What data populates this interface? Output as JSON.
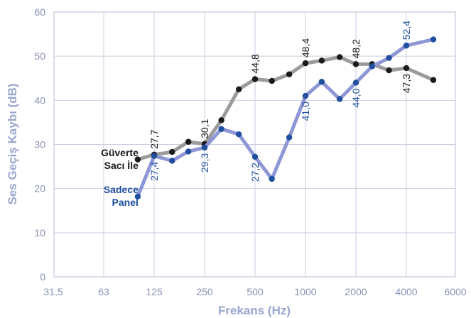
{
  "chart_data": {
    "type": "line",
    "xlabel": "Frekans (Hz)",
    "ylabel": "Ses Geçiş Kaybı (dB)",
    "x_scale": "log2",
    "x_ticks": [
      31.5,
      63,
      125,
      250,
      500,
      1000,
      2000,
      4000,
      6000
    ],
    "x_tick_labels": [
      "31,5",
      "63",
      "125",
      "250",
      "500",
      "1000",
      "2000",
      "4000",
      "6000"
    ],
    "ylim": [
      0,
      60
    ],
    "y_ticks": [
      0,
      10,
      20,
      30,
      40,
      50,
      60
    ],
    "y_tick_labels": [
      "0",
      "10",
      "20",
      "30",
      "40",
      "50",
      "60"
    ],
    "grid": true,
    "series": [
      {
        "name": "Güverte Sacı İle",
        "name_lines": [
          "Güverte",
          "Sacı İle"
        ],
        "line_color": "#9b9b9b",
        "marker_color": "#1a1a1a",
        "label_color": "#1a1a1a",
        "points": [
          {
            "x": 100,
            "y": 26.6
          },
          {
            "x": 125,
            "y": 27.7
          },
          {
            "x": 160,
            "y": 28.3
          },
          {
            "x": 200,
            "y": 30.6
          },
          {
            "x": 250,
            "y": 30.1
          },
          {
            "x": 315,
            "y": 35.5
          },
          {
            "x": 400,
            "y": 42.5
          },
          {
            "x": 500,
            "y": 44.8
          },
          {
            "x": 630,
            "y": 44.4
          },
          {
            "x": 800,
            "y": 45.9
          },
          {
            "x": 1000,
            "y": 48.4
          },
          {
            "x": 1250,
            "y": 49.0
          },
          {
            "x": 1600,
            "y": 49.8
          },
          {
            "x": 2000,
            "y": 48.2
          },
          {
            "x": 2500,
            "y": 48.2
          },
          {
            "x": 3150,
            "y": 46.8
          },
          {
            "x": 4000,
            "y": 47.3
          },
          {
            "x": 5000,
            "y": 44.6
          }
        ],
        "annotations": [
          {
            "x": 125,
            "y": 27.7,
            "text": "27,7",
            "pos": "above"
          },
          {
            "x": 250,
            "y": 30.1,
            "text": "30,1",
            "pos": "above"
          },
          {
            "x": 500,
            "y": 44.8,
            "text": "44,8",
            "pos": "above"
          },
          {
            "x": 1000,
            "y": 48.4,
            "text": "48,4",
            "pos": "above"
          },
          {
            "x": 2000,
            "y": 48.2,
            "text": "48,2",
            "pos": "above"
          },
          {
            "x": 4000,
            "y": 47.3,
            "text": "47,3",
            "pos": "below"
          }
        ]
      },
      {
        "name": "Sadece Panel",
        "name_lines": [
          "Sadece",
          "Panel"
        ],
        "line_color": "#8e97d6",
        "marker_color": "#1f4f9e",
        "label_color": "#1f4f9e",
        "points": [
          {
            "x": 100,
            "y": 18.2
          },
          {
            "x": 125,
            "y": 27.4
          },
          {
            "x": 160,
            "y": 26.3
          },
          {
            "x": 200,
            "y": 28.4
          },
          {
            "x": 250,
            "y": 29.3
          },
          {
            "x": 315,
            "y": 33.5
          },
          {
            "x": 400,
            "y": 32.3
          },
          {
            "x": 500,
            "y": 27.2
          },
          {
            "x": 630,
            "y": 22.2
          },
          {
            "x": 800,
            "y": 31.6
          },
          {
            "x": 1000,
            "y": 41.0
          },
          {
            "x": 1250,
            "y": 44.2
          },
          {
            "x": 1600,
            "y": 40.3
          },
          {
            "x": 2000,
            "y": 44.0
          },
          {
            "x": 2500,
            "y": 47.7
          },
          {
            "x": 3150,
            "y": 49.6
          },
          {
            "x": 4000,
            "y": 52.4
          },
          {
            "x": 5000,
            "y": 53.8
          }
        ],
        "annotations": [
          {
            "x": 125,
            "y": 27.4,
            "text": "27,4",
            "pos": "below"
          },
          {
            "x": 250,
            "y": 29.3,
            "text": "29,3",
            "pos": "below"
          },
          {
            "x": 500,
            "y": 27.2,
            "text": "27,2",
            "pos": "below"
          },
          {
            "x": 1000,
            "y": 41.0,
            "text": "41,0",
            "pos": "below"
          },
          {
            "x": 2000,
            "y": 44.0,
            "text": "44,0",
            "pos": "below"
          },
          {
            "x": 4000,
            "y": 52.4,
            "text": "52,4",
            "pos": "above"
          }
        ]
      }
    ]
  }
}
